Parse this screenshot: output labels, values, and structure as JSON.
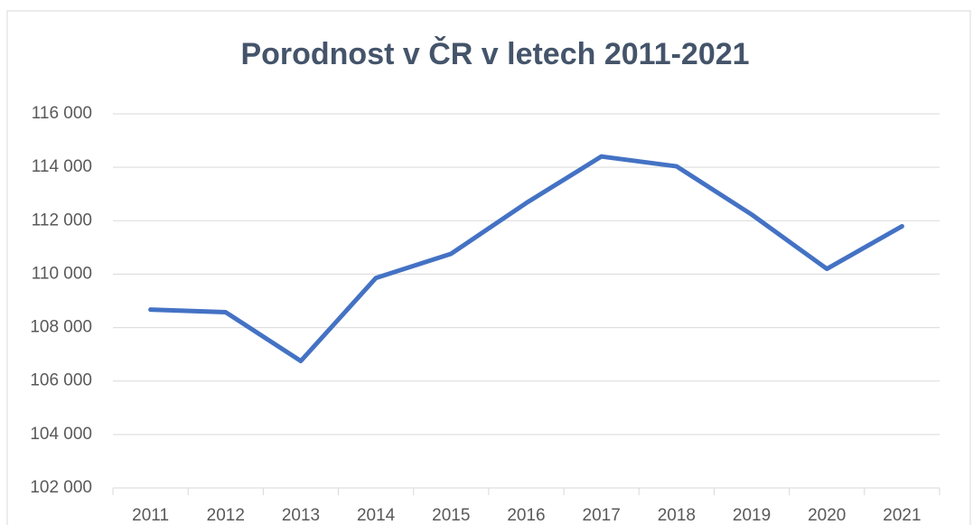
{
  "chart_data": {
    "type": "line",
    "title": "Porodnost v ČR v letech 2011-2021",
    "categories": [
      "2011",
      "2012",
      "2013",
      "2014",
      "2015",
      "2016",
      "2017",
      "2018",
      "2019",
      "2020",
      "2021"
    ],
    "series": [
      {
        "name": "Porodnost",
        "color": "#4472c4",
        "values": [
          108673,
          108576,
          106751,
          109860,
          110764,
          112663,
          114405,
          114036,
          112231,
          110200,
          111793
        ]
      }
    ],
    "ylim": [
      102000,
      116000
    ],
    "yticks": [
      {
        "value": 102000,
        "label": "102 000"
      },
      {
        "value": 104000,
        "label": "104 000"
      },
      {
        "value": 106000,
        "label": "106 000"
      },
      {
        "value": 108000,
        "label": "108 000"
      },
      {
        "value": 110000,
        "label": "110 000"
      },
      {
        "value": 112000,
        "label": "112 000"
      },
      {
        "value": 114000,
        "label": "114 000"
      },
      {
        "value": 116000,
        "label": "116 000"
      }
    ],
    "grid": true
  }
}
